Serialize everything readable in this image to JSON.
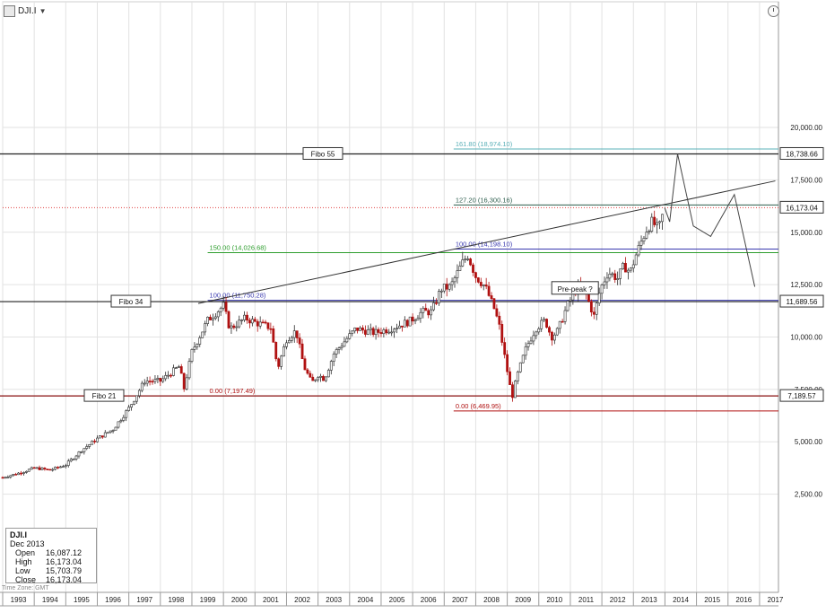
{
  "header": {
    "symbol": "DJI.I",
    "icon": "chart-icon",
    "dropdown_icon": "chevron-down-icon",
    "clock_icon": "clock-icon"
  },
  "info_box": {
    "symbol": "DJI.I",
    "period": "Dec 2013",
    "rows": [
      {
        "label": "Open",
        "value": "16,087.12"
      },
      {
        "label": "High",
        "value": "16,173.04"
      },
      {
        "label": "Low",
        "value": "15,703.79"
      },
      {
        "label": "Close",
        "value": "16,173.04"
      }
    ]
  },
  "timezone_label": "Time Zone: GMT",
  "colors": {
    "candle_up": "#2a2a2a",
    "candle_down": "#b01010",
    "fib_green": "#2e9e2e",
    "fib_blue": "#3a3ab0",
    "fib_red": "#b01010",
    "fib_teal": "#5ab0b8",
    "fib_dark": "#2e5e4e",
    "price_dotted": "#e04040"
  },
  "chart_data": {
    "type": "candlestick",
    "title": "DJI.I",
    "x_tick_labels": [
      "1993",
      "1994",
      "1995",
      "1996",
      "1997",
      "1998",
      "1999",
      "2000",
      "2001",
      "2002",
      "2003",
      "2004",
      "2005",
      "2006",
      "2007",
      "2008",
      "2009",
      "2010",
      "2011",
      "2012",
      "2013",
      "2014",
      "2015",
      "2016",
      "2017"
    ],
    "y_tick_labels": [
      "2,500.00",
      "5,000.00",
      "7,500.00",
      "10,000.00",
      "12,500.00",
      "15,000.00",
      "17,500.00",
      "20,000.00"
    ],
    "x_range": [
      1993.0,
      2017.6
    ],
    "ylim": [
      1200,
      20500
    ],
    "price_path": [
      [
        1993.0,
        3300
      ],
      [
        1993.5,
        3500
      ],
      [
        1994.0,
        3750
      ],
      [
        1994.5,
        3650
      ],
      [
        1995.0,
        3900
      ],
      [
        1995.5,
        4600
      ],
      [
        1996.0,
        5150
      ],
      [
        1996.5,
        5600
      ],
      [
        1997.0,
        6600
      ],
      [
        1997.5,
        7900
      ],
      [
        1998.0,
        7900
      ],
      [
        1998.6,
        8600
      ],
      [
        1998.75,
        7550
      ],
      [
        1999.0,
        9300
      ],
      [
        1999.5,
        10800
      ],
      [
        2000.0,
        11500
      ],
      [
        2000.2,
        10400
      ],
      [
        2000.7,
        10900
      ],
      [
        2001.0,
        10700
      ],
      [
        2001.5,
        10450
      ],
      [
        2001.72,
        8500
      ],
      [
        2002.0,
        9900
      ],
      [
        2002.3,
        10300
      ],
      [
        2002.55,
        8600
      ],
      [
        2002.8,
        7800
      ],
      [
        2003.0,
        8200
      ],
      [
        2003.2,
        8000
      ],
      [
        2003.5,
        9200
      ],
      [
        2003.9,
        9900
      ],
      [
        2004.2,
        10400
      ],
      [
        2004.8,
        10200
      ],
      [
        2005.3,
        10400
      ],
      [
        2005.9,
        10750
      ],
      [
        2006.3,
        11200
      ],
      [
        2006.6,
        11200
      ],
      [
        2006.9,
        12300
      ],
      [
        2007.2,
        12400
      ],
      [
        2007.6,
        13600
      ],
      [
        2007.75,
        13900
      ],
      [
        2008.0,
        12900
      ],
      [
        2008.3,
        12400
      ],
      [
        2008.6,
        11300
      ],
      [
        2008.75,
        10500
      ],
      [
        2008.95,
        8800
      ],
      [
        2009.15,
        7100
      ],
      [
        2009.3,
        8100
      ],
      [
        2009.6,
        9500
      ],
      [
        2009.9,
        10400
      ],
      [
        2010.2,
        10800
      ],
      [
        2010.4,
        10000
      ],
      [
        2010.6,
        10300
      ],
      [
        2010.9,
        11500
      ],
      [
        2011.2,
        12300
      ],
      [
        2011.4,
        12500
      ],
      [
        2011.6,
        11600
      ],
      [
        2011.75,
        11000
      ],
      [
        2011.95,
        12300
      ],
      [
        2012.2,
        13100
      ],
      [
        2012.5,
        12800
      ],
      [
        2012.7,
        13400
      ],
      [
        2012.9,
        13100
      ],
      [
        2013.1,
        14000
      ],
      [
        2013.4,
        15100
      ],
      [
        2013.6,
        15500
      ],
      [
        2013.8,
        15100
      ],
      [
        2013.99,
        16173
      ]
    ],
    "projection": [
      [
        2013.99,
        16173
      ],
      [
        2014.15,
        15500
      ],
      [
        2014.4,
        18738
      ],
      [
        2014.9,
        15300
      ],
      [
        2015.45,
        14800
      ],
      [
        2016.2,
        16800
      ],
      [
        2016.85,
        12400
      ]
    ],
    "fibonacci_levels": [
      {
        "label": "161.80 (18,974.10)",
        "value": 18974,
        "x_start": 2007.3,
        "color": "#5ab0b8"
      },
      {
        "label": "127.20 (16,300.16)",
        "value": 16300,
        "x_start": 2007.3,
        "color": "#2e5e4e"
      },
      {
        "label": "100.00 (14,198.10)",
        "value": 14198,
        "x_start": 2007.3,
        "color": "#3a3ab0"
      },
      {
        "label": "150.00 (14,026.68)",
        "value": 14026,
        "x_start": 1999.5,
        "color": "#2e9e2e"
      },
      {
        "label": "100.00 (11,750.28)",
        "value": 11750,
        "x_start": 1999.5,
        "color": "#3a3ab0"
      },
      {
        "label": "0.00 (7,197.49)",
        "value": 7197,
        "x_start": 1999.5,
        "color": "#b01010"
      },
      {
        "label": "0.00 (6,469.95)",
        "value": 6470,
        "x_start": 2007.3,
        "color": "#b01010"
      }
    ],
    "horizontal_lines": [
      {
        "name": "Fibo 55",
        "value": 18738.66,
        "tag": "18,738.66"
      },
      {
        "name": "Fibo 34",
        "value": 11689.56,
        "tag": "11,689.56"
      },
      {
        "name": "Fibo 21",
        "value": 7189.57,
        "tag": "7,189.57"
      }
    ],
    "last_price": {
      "value": 16173.04,
      "tag": "16,173.04"
    },
    "trendline": {
      "points": [
        [
          1999.2,
          11600
        ],
        [
          2017.5,
          17450
        ]
      ]
    },
    "annotations": [
      {
        "text": "Pre-peak ?",
        "x": 2011.15,
        "y": 12300
      }
    ]
  }
}
